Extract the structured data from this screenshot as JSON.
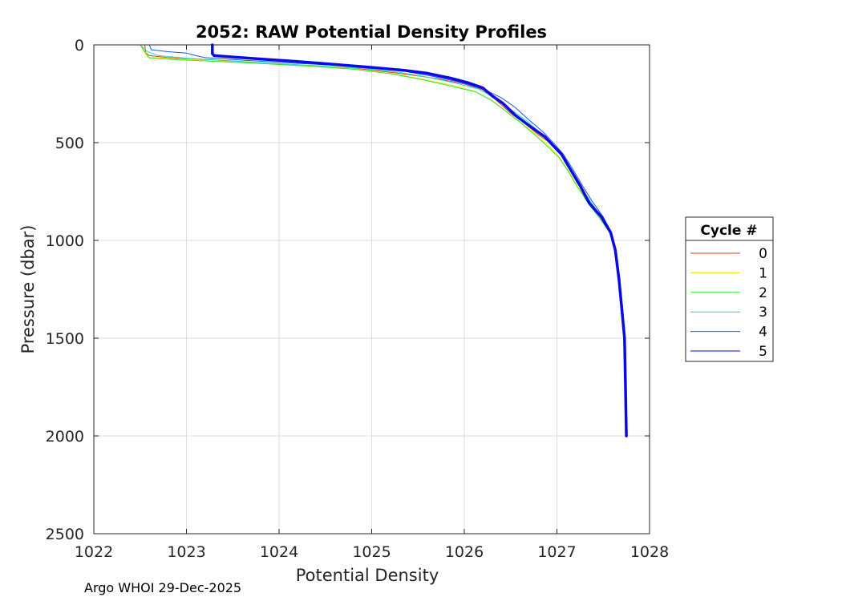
{
  "chart_data": {
    "type": "line",
    "title": "2052: RAW Potential Density Profiles",
    "xlabel": "Potential Density",
    "ylabel": "Pressure (dbar)",
    "xlim": [
      1022,
      1028
    ],
    "ylim": [
      0,
      2500
    ],
    "y_reversed": true,
    "xticks": [
      "1022",
      "1023",
      "1024",
      "1025",
      "1026",
      "1027",
      "1028"
    ],
    "yticks": [
      "0",
      "500",
      "1000",
      "1500",
      "2000",
      "2500"
    ],
    "grid": true,
    "legend": {
      "title": "Cycle #",
      "placement": "right"
    },
    "series": [
      {
        "name": "0",
        "color": "#e8400a",
        "width": 1,
        "points": [
          [
            1022.55,
            0
          ],
          [
            1022.56,
            40
          ],
          [
            1022.6,
            55
          ],
          [
            1022.8,
            65
          ],
          [
            1023.1,
            72
          ],
          [
            1023.5,
            82
          ],
          [
            1024.0,
            98
          ],
          [
            1024.5,
            110
          ],
          [
            1025.0,
            128
          ],
          [
            1025.4,
            152
          ],
          [
            1025.7,
            172
          ],
          [
            1026.0,
            200
          ],
          [
            1026.2,
            230
          ],
          [
            1026.35,
            285
          ],
          [
            1026.5,
            350
          ],
          [
            1026.65,
            400
          ],
          [
            1026.8,
            460
          ],
          [
            1026.95,
            510
          ],
          [
            1027.05,
            560
          ],
          [
            1027.15,
            640
          ],
          [
            1027.25,
            720
          ],
          [
            1027.35,
            810
          ],
          [
            1027.48,
            880
          ],
          [
            1027.58,
            960
          ],
          [
            1027.63,
            1050
          ],
          [
            1027.67,
            1200
          ],
          [
            1027.7,
            1350
          ],
          [
            1027.73,
            1500
          ],
          [
            1027.74,
            1750
          ],
          [
            1027.75,
            2000
          ]
        ]
      },
      {
        "name": "1",
        "color": "#f0f000",
        "width": 1,
        "points": [
          [
            1022.5,
            0
          ],
          [
            1022.55,
            40
          ],
          [
            1022.58,
            62
          ],
          [
            1022.9,
            72
          ],
          [
            1023.3,
            80
          ],
          [
            1023.8,
            92
          ],
          [
            1024.3,
            106
          ],
          [
            1024.8,
            122
          ],
          [
            1025.2,
            145
          ],
          [
            1025.55,
            175
          ],
          [
            1025.85,
            205
          ],
          [
            1026.1,
            235
          ],
          [
            1026.28,
            280
          ],
          [
            1026.45,
            340
          ],
          [
            1026.62,
            400
          ],
          [
            1026.78,
            460
          ],
          [
            1026.92,
            520
          ],
          [
            1027.02,
            570
          ],
          [
            1027.12,
            640
          ],
          [
            1027.22,
            720
          ],
          [
            1027.33,
            800
          ],
          [
            1027.46,
            880
          ],
          [
            1027.57,
            960
          ],
          [
            1027.63,
            1050
          ],
          [
            1027.67,
            1200
          ],
          [
            1027.7,
            1350
          ],
          [
            1027.73,
            1500
          ],
          [
            1027.74,
            1750
          ],
          [
            1027.75,
            2000
          ]
        ]
      },
      {
        "name": "2",
        "color": "#2ee62e",
        "width": 1,
        "points": [
          [
            1022.5,
            0
          ],
          [
            1022.56,
            40
          ],
          [
            1022.6,
            68
          ],
          [
            1022.9,
            76
          ],
          [
            1023.3,
            84
          ],
          [
            1023.8,
            95
          ],
          [
            1024.3,
            108
          ],
          [
            1024.8,
            124
          ],
          [
            1025.2,
            147
          ],
          [
            1025.55,
            178
          ],
          [
            1025.85,
            210
          ],
          [
            1026.12,
            240
          ],
          [
            1026.3,
            285
          ],
          [
            1026.45,
            340
          ],
          [
            1026.6,
            395
          ],
          [
            1026.75,
            455
          ],
          [
            1026.9,
            520
          ],
          [
            1027.02,
            575
          ],
          [
            1027.12,
            645
          ],
          [
            1027.22,
            725
          ],
          [
            1027.33,
            805
          ],
          [
            1027.45,
            880
          ],
          [
            1027.57,
            960
          ],
          [
            1027.63,
            1050
          ],
          [
            1027.67,
            1200
          ],
          [
            1027.7,
            1350
          ],
          [
            1027.73,
            1500
          ],
          [
            1027.74,
            1750
          ],
          [
            1027.75,
            2000
          ]
        ]
      },
      {
        "name": "3",
        "color": "#22d8d8",
        "width": 1,
        "points": [
          [
            1022.5,
            0
          ],
          [
            1022.58,
            35
          ],
          [
            1022.7,
            55
          ],
          [
            1023.0,
            68
          ],
          [
            1023.4,
            80
          ],
          [
            1023.9,
            94
          ],
          [
            1024.4,
            106
          ],
          [
            1024.9,
            120
          ],
          [
            1025.3,
            140
          ],
          [
            1025.6,
            165
          ],
          [
            1025.9,
            195
          ],
          [
            1026.15,
            225
          ],
          [
            1026.33,
            270
          ],
          [
            1026.5,
            330
          ],
          [
            1026.68,
            390
          ],
          [
            1026.82,
            450
          ],
          [
            1026.95,
            510
          ],
          [
            1027.05,
            565
          ],
          [
            1027.15,
            640
          ],
          [
            1027.25,
            720
          ],
          [
            1027.36,
            800
          ],
          [
            1027.48,
            880
          ],
          [
            1027.58,
            960
          ],
          [
            1027.63,
            1050
          ],
          [
            1027.67,
            1200
          ],
          [
            1027.7,
            1350
          ],
          [
            1027.73,
            1500
          ],
          [
            1027.74,
            1750
          ],
          [
            1027.75,
            2000
          ]
        ]
      },
      {
        "name": "4",
        "color": "#1a56e8",
        "width": 1,
        "points": [
          [
            1022.6,
            0
          ],
          [
            1022.62,
            25
          ],
          [
            1022.8,
            35
          ],
          [
            1023.0,
            42
          ],
          [
            1023.1,
            55
          ],
          [
            1023.2,
            65
          ],
          [
            1023.6,
            78
          ],
          [
            1024.1,
            92
          ],
          [
            1024.6,
            104
          ],
          [
            1025.0,
            118
          ],
          [
            1025.35,
            135
          ],
          [
            1025.65,
            160
          ],
          [
            1025.95,
            190
          ],
          [
            1026.2,
            225
          ],
          [
            1026.4,
            270
          ],
          [
            1026.55,
            320
          ],
          [
            1026.7,
            385
          ],
          [
            1026.85,
            445
          ],
          [
            1026.97,
            505
          ],
          [
            1027.07,
            560
          ],
          [
            1027.17,
            635
          ],
          [
            1027.27,
            715
          ],
          [
            1027.38,
            800
          ],
          [
            1027.5,
            880
          ],
          [
            1027.59,
            960
          ],
          [
            1027.64,
            1050
          ],
          [
            1027.68,
            1200
          ],
          [
            1027.71,
            1350
          ],
          [
            1027.73,
            1500
          ],
          [
            1027.74,
            1750
          ],
          [
            1027.75,
            2000
          ]
        ]
      },
      {
        "name": "5",
        "color": "#0a0ae6",
        "width": 3.5,
        "points": [
          [
            1023.28,
            0
          ],
          [
            1023.28,
            45
          ],
          [
            1023.3,
            55
          ],
          [
            1023.5,
            62
          ],
          [
            1023.8,
            72
          ],
          [
            1024.2,
            85
          ],
          [
            1024.6,
            100
          ],
          [
            1025.0,
            115
          ],
          [
            1025.35,
            130
          ],
          [
            1025.6,
            145
          ],
          [
            1025.85,
            170
          ],
          [
            1026.05,
            195
          ],
          [
            1026.2,
            220
          ],
          [
            1026.3,
            260
          ],
          [
            1026.42,
            300
          ],
          [
            1026.55,
            360
          ],
          [
            1026.72,
            420
          ],
          [
            1026.87,
            470
          ],
          [
            1026.97,
            520
          ],
          [
            1027.05,
            560
          ],
          [
            1027.15,
            640
          ],
          [
            1027.25,
            720
          ],
          [
            1027.35,
            810
          ],
          [
            1027.48,
            880
          ],
          [
            1027.58,
            960
          ],
          [
            1027.63,
            1050
          ],
          [
            1027.67,
            1200
          ],
          [
            1027.7,
            1350
          ],
          [
            1027.73,
            1500
          ],
          [
            1027.74,
            1750
          ],
          [
            1027.75,
            2000
          ]
        ]
      }
    ]
  },
  "footer": {
    "text": "Argo WHOI 29-Dec-2025"
  }
}
